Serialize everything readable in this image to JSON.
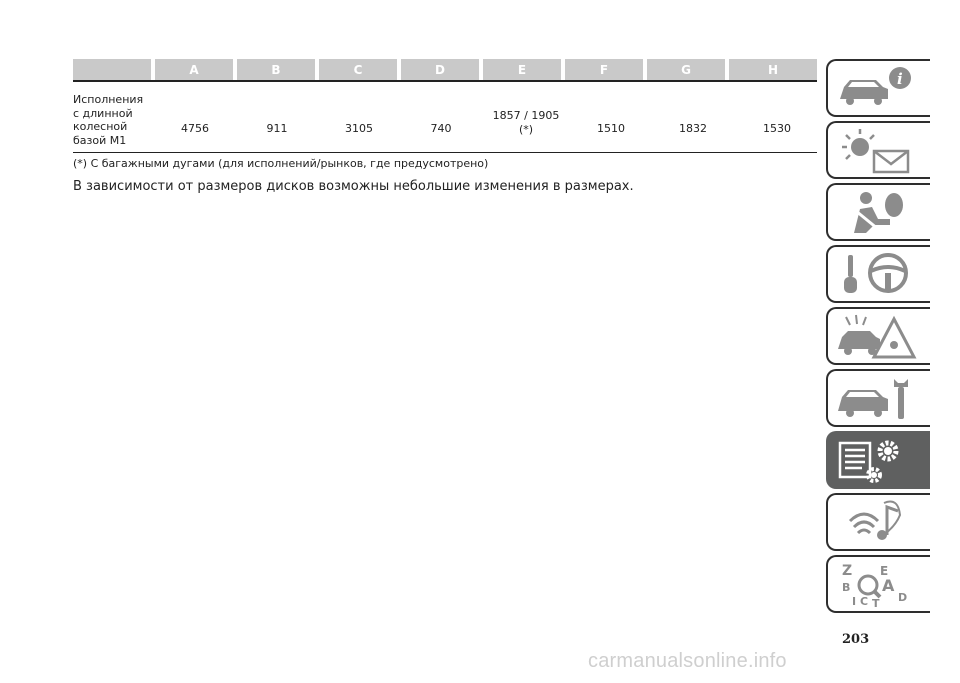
{
  "table": {
    "header": [
      "A",
      "B",
      "C",
      "D",
      "E",
      "F",
      "G",
      "H"
    ],
    "row_label": "Исполнения\nс длинной\nколесной\nбазой M1",
    "values": [
      "4756",
      "911",
      "3105",
      "740",
      "1857 / 1905\n(*)",
      "1510",
      "1832",
      "1530"
    ]
  },
  "footnote": "(*) С багажными дугами (для исполнений/рынков, где предусмотрено)",
  "note": "В зависимости от размеров дисков возможны небольшие изменения в размерах.",
  "page_number": "203",
  "watermark": "carmanualsonline.info",
  "side_tabs": [
    {
      "icon": "car-info-icon",
      "active": false
    },
    {
      "icon": "warning-lights-message-icon",
      "active": false
    },
    {
      "icon": "seat-belt-airbag-icon",
      "active": false
    },
    {
      "icon": "key-steering-wheel-icon",
      "active": false
    },
    {
      "icon": "car-breakdown-warning-icon",
      "active": false
    },
    {
      "icon": "car-maintenance-wrench-icon",
      "active": false
    },
    {
      "icon": "technical-specifications-gears-icon",
      "active": true
    },
    {
      "icon": "multimedia-icon",
      "active": false
    },
    {
      "icon": "index-search-icon",
      "active": false
    }
  ],
  "colors": {
    "header_bg": "#c9c9c9",
    "tab_active": "#5f6060",
    "text": "#222222"
  }
}
